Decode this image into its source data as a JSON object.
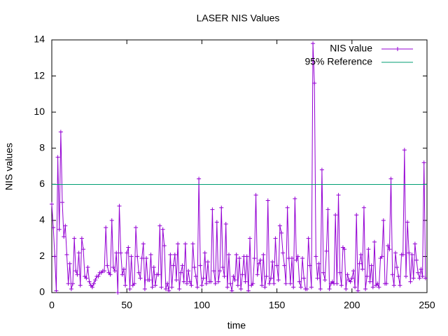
{
  "chart_data": {
    "type": "line",
    "title": "LASER NIS Values",
    "x_label": "time",
    "y_label": "NIS values",
    "xlim": [
      0,
      250
    ],
    "ylim": [
      0,
      14
    ],
    "xticks": [
      0,
      50,
      100,
      150,
      200,
      250
    ],
    "yticks": [
      0,
      2,
      4,
      6,
      8,
      10,
      12,
      14
    ],
    "legend": "top-right",
    "series": [
      {
        "name": "NIS value",
        "color": "#9400d3",
        "markers": true,
        "x": [
          0,
          1,
          2,
          3,
          4,
          5,
          6,
          7,
          8,
          9,
          10,
          11,
          12,
          13,
          14,
          15,
          16,
          17,
          18,
          19,
          20,
          21,
          22,
          23,
          24,
          25,
          26,
          27,
          28,
          29,
          30,
          31,
          32,
          33,
          34,
          35,
          36,
          37,
          38,
          39,
          40,
          41,
          42,
          43,
          44,
          45,
          46,
          47,
          48,
          49,
          50,
          51,
          52,
          53,
          54,
          55,
          56,
          57,
          58,
          59,
          60,
          61,
          62,
          63,
          64,
          65,
          66,
          67,
          68,
          69,
          70,
          71,
          72,
          73,
          74,
          75,
          76,
          77,
          78,
          79,
          80,
          81,
          82,
          83,
          84,
          85,
          86,
          87,
          88,
          89,
          90,
          91,
          92,
          93,
          94,
          95,
          96,
          97,
          98,
          99,
          100,
          101,
          102,
          103,
          104,
          105,
          106,
          107,
          108,
          109,
          110,
          111,
          112,
          113,
          114,
          115,
          116,
          117,
          118,
          119,
          120,
          121,
          122,
          123,
          124,
          125,
          126,
          127,
          128,
          129,
          130,
          131,
          132,
          133,
          134,
          135,
          136,
          137,
          138,
          139,
          140,
          141,
          142,
          143,
          144,
          145,
          146,
          147,
          148,
          149,
          150,
          151,
          152,
          153,
          154,
          155,
          156,
          157,
          158,
          159,
          160,
          161,
          162,
          163,
          164,
          165,
          166,
          167,
          168,
          169,
          170,
          171,
          172,
          173,
          174,
          175,
          176,
          177,
          178,
          179,
          180,
          181,
          182,
          183,
          184,
          185,
          186,
          187,
          188,
          189,
          190,
          191,
          192,
          193,
          194,
          195,
          196,
          197,
          198,
          199,
          200,
          201,
          202,
          203,
          204,
          205,
          206,
          207,
          208,
          209,
          210,
          211,
          212,
          213,
          214,
          215,
          216,
          217,
          218,
          219,
          220,
          221,
          222,
          223,
          224,
          225,
          226,
          227,
          228,
          229,
          230,
          231,
          232,
          233,
          234,
          235,
          236,
          237,
          238,
          239,
          240,
          241,
          242,
          243,
          244,
          245,
          246,
          247,
          248,
          249
        ],
        "values": [
          4.9,
          3.6,
          2.0,
          0.1,
          7.5,
          3.5,
          8.9,
          5.0,
          3.1,
          3.7,
          2.1,
          0.5,
          1.6,
          0.2,
          0.5,
          3.0,
          1.2,
          1.0,
          2.2,
          0.4,
          3.0,
          2.4,
          0.9,
          0.8,
          1.4,
          0.6,
          0.4,
          0.3,
          0.5,
          0.7,
          0.9,
          0.9,
          1.1,
          1.1,
          1.2,
          1.2,
          3.6,
          1.5,
          1.1,
          1.0,
          4.0,
          1.4,
          1.2,
          2.2,
          0.0,
          4.8,
          2.2,
          1.0,
          1.3,
          0.4,
          2.2,
          2.5,
          0.2,
          2.0,
          0.4,
          0.5,
          3.6,
          2.0,
          1.1,
          0.8,
          1.9,
          2.7,
          0.2,
          1.9,
          0.7,
          0.7,
          2.1,
          0.3,
          1.4,
          0.4,
          1.0,
          1.0,
          3.7,
          0.3,
          3.5,
          2.6,
          0.2,
          0.5,
          0.1,
          2.1,
          0.3,
          1.5,
          2.1,
          0.7,
          2.7,
          0.2,
          1.1,
          1.5,
          0.6,
          2.7,
          0.5,
          1.2,
          0.6,
          0.4,
          2.7,
          1.4,
          0.9,
          0.3,
          6.3,
          1.5,
          0.4,
          0.8,
          2.2,
          0.5,
          1.7,
          0.6,
          0.6,
          4.6,
          1.2,
          0.5,
          3.9,
          0.6,
          1.2,
          4.7,
          1.4,
          0.9,
          3.8,
          0.3,
          2.1,
          0.5,
          0.1,
          0.9,
          0.7,
          2.1,
          0.4,
          1.9,
          0.2,
          1.0,
          2.0,
          0.6,
          2.0,
          0.1,
          3.0,
          0.4,
          0.5,
          1.9,
          5.4,
          1.0,
          1.6,
          1.8,
          0.4,
          2.1,
          0.3,
          0.9,
          5.1,
          0.5,
          0.8,
          1.7,
          0.5,
          3.0,
          1.5,
          0.7,
          3.7,
          3.3,
          2.2,
          1.5,
          0.5,
          4.7,
          1.9,
          0.5,
          1.9,
          0.3,
          5.2,
          1.8,
          2.0,
          0.6,
          0.3,
          1.9,
          0.8,
          0.2,
          0.2,
          3.0,
          1.5,
          0.3,
          13.8,
          11.6,
          2.0,
          0.8,
          1.6,
          0.2,
          6.8,
          1.1,
          0.7,
          2.3,
          4.6,
          0.2,
          0.5,
          0.6,
          0.5,
          4.3,
          0.5,
          5.4,
          1.1,
          0.4,
          2.5,
          2.4,
          0.2,
          1.0,
          0.7,
          0.6,
          0.8,
          1.2,
          0.3,
          4.3,
          0.1,
          1.6,
          2.1,
          1.3,
          4.7,
          0.2,
          0.9,
          2.4,
          0.6,
          1.5,
          0.3,
          2.8,
          0.4,
          0.5,
          0.3,
          1.9,
          2.0,
          4.0,
          0.5,
          0.5,
          2.6,
          2.4,
          6.3,
          1.0,
          0.4,
          2.2,
          1.4,
          0.9,
          0.4,
          2.1,
          2.1,
          7.9,
          0.9,
          3.9,
          2.2,
          0.6,
          2.1,
          0.8,
          2.7,
          1.8,
          1.1,
          0.8,
          1.3,
          0.9,
          7.2,
          0.8
        ]
      },
      {
        "name": "95% Reference",
        "color": "#009e73",
        "markers": false,
        "x": [
          0,
          250
        ],
        "values": [
          5.991,
          5.991
        ]
      }
    ]
  }
}
